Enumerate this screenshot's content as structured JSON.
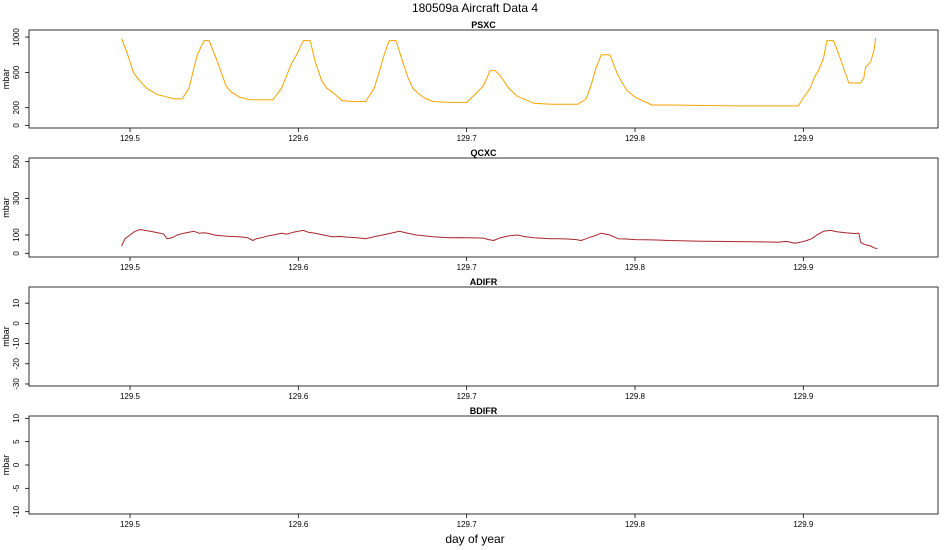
{
  "title": "180509a   Aircraft Data 4",
  "xlabel": "day of year",
  "chart_data": [
    {
      "type": "line",
      "title": "PSXC",
      "ylabel": "mbar",
      "xlim": [
        129.44,
        129.98
      ],
      "ylim": [
        -30,
        1080
      ],
      "xticks": [
        129.5,
        129.6,
        129.7,
        129.8,
        129.9
      ],
      "yticks": [
        0,
        200,
        600,
        1000
      ],
      "series": [
        {
          "color": "#f5a300",
          "x": [
            129.495,
            129.498,
            129.502,
            129.505,
            129.51,
            129.516,
            129.52,
            129.526,
            129.531,
            129.535,
            129.538,
            129.54,
            129.544,
            129.547,
            129.552,
            129.557,
            129.56,
            129.565,
            129.571,
            129.574,
            129.58,
            129.585,
            129.59,
            129.593,
            129.596,
            129.599,
            129.603,
            129.607,
            129.61,
            129.614,
            129.617,
            129.62,
            129.626,
            129.632,
            129.636,
            129.64,
            129.645,
            129.648,
            129.651,
            129.654,
            129.658,
            129.662,
            129.665,
            129.668,
            129.672,
            129.676,
            129.68,
            129.69,
            129.7,
            129.705,
            129.71,
            129.714,
            129.717,
            129.72,
            129.725,
            129.73,
            129.74,
            129.75,
            129.76,
            129.766,
            129.771,
            129.774,
            129.777,
            129.78,
            129.785,
            129.79,
            129.795,
            129.8,
            129.81,
            129.82,
            129.822,
            129.84,
            129.86,
            129.87,
            129.882,
            129.887,
            129.892,
            129.897,
            129.9,
            129.904,
            129.907,
            129.909,
            129.912,
            129.914,
            129.918,
            129.923,
            129.927,
            129.933,
            129.934,
            129.934,
            129.936,
            129.937,
            129.94,
            129.942,
            129.943
          ],
          "y": [
            980,
            840,
            600,
            520,
            420,
            350,
            330,
            300,
            300,
            420,
            650,
            800,
            960,
            960,
            720,
            450,
            380,
            320,
            290,
            290,
            290,
            290,
            420,
            560,
            700,
            800,
            960,
            960,
            720,
            500,
            420,
            380,
            280,
            270,
            270,
            270,
            420,
            600,
            800,
            960,
            960,
            720,
            550,
            420,
            350,
            300,
            270,
            260,
            260,
            350,
            450,
            620,
            620,
            560,
            420,
            330,
            250,
            240,
            240,
            240,
            300,
            460,
            660,
            800,
            800,
            560,
            400,
            320,
            230,
            230,
            230,
            225,
            220,
            220,
            220,
            220,
            220,
            220,
            310,
            420,
            560,
            620,
            760,
            960,
            960,
            700,
            480,
            480,
            480,
            480,
            540,
            660,
            720,
            850,
            990
          ]
        }
      ]
    },
    {
      "type": "line",
      "title": "QCXC",
      "ylabel": "mbar",
      "xlim": [
        129.44,
        129.98
      ],
      "ylim": [
        -20,
        520
      ],
      "xticks": [
        129.5,
        129.6,
        129.7,
        129.8,
        129.9
      ],
      "yticks": [
        0,
        100,
        300,
        500
      ],
      "series": [
        {
          "color": "#a8262b",
          "x": [
            129.495,
            129.497,
            129.5,
            129.503,
            129.506,
            129.509,
            129.512,
            129.515,
            129.518,
            129.52,
            129.522,
            129.525,
            129.528,
            129.532,
            129.535,
            129.538,
            129.541,
            129.544,
            129.547,
            129.55,
            129.555,
            129.56,
            129.565,
            129.57,
            129.573,
            129.575,
            129.578,
            129.582,
            129.585,
            129.59,
            129.593,
            129.597,
            129.6,
            129.603,
            129.606,
            129.61,
            129.615,
            129.62,
            129.625,
            129.63,
            129.635,
            129.64,
            129.645,
            129.65,
            129.655,
            129.66,
            129.665,
            129.67,
            129.675,
            129.68,
            129.685,
            129.69,
            129.695,
            129.7,
            129.705,
            129.71,
            129.713,
            129.716,
            129.72,
            129.725,
            129.73,
            129.735,
            129.74,
            129.745,
            129.75,
            129.755,
            129.76,
            129.765,
            129.768,
            129.771,
            129.774,
            129.776,
            129.78,
            129.785,
            129.79,
            129.795,
            129.8,
            129.805,
            129.81,
            129.815,
            129.82,
            129.83,
            129.84,
            129.85,
            129.86,
            129.87,
            129.88,
            129.885,
            129.89,
            129.895,
            129.898,
            129.902,
            129.905,
            129.908,
            129.912,
            129.916,
            129.92,
            129.925,
            129.93,
            129.933,
            129.934,
            129.936,
            129.938,
            129.94,
            129.942,
            129.944
          ],
          "y": [
            40,
            80,
            100,
            120,
            130,
            125,
            120,
            115,
            110,
            105,
            80,
            85,
            100,
            110,
            115,
            120,
            110,
            112,
            108,
            100,
            95,
            92,
            90,
            85,
            70,
            80,
            85,
            95,
            100,
            110,
            105,
            115,
            120,
            125,
            115,
            110,
            100,
            90,
            92,
            88,
            85,
            80,
            90,
            100,
            110,
            120,
            110,
            100,
            95,
            90,
            88,
            85,
            86,
            85,
            84,
            83,
            75,
            70,
            85,
            95,
            100,
            90,
            85,
            82,
            80,
            80,
            78,
            75,
            70,
            80,
            90,
            95,
            110,
            100,
            80,
            78,
            75,
            74,
            73,
            72,
            70,
            68,
            66,
            65,
            64,
            63,
            62,
            60,
            65,
            55,
            60,
            70,
            80,
            100,
            120,
            125,
            118,
            112,
            108,
            110,
            60,
            50,
            45,
            40,
            30,
            25
          ]
        }
      ]
    },
    {
      "type": "line",
      "title": "ADIFR",
      "ylabel": "mbar",
      "xlim": [
        129.44,
        129.98
      ],
      "ylim": [
        -31,
        18
      ],
      "xticks": [
        129.5,
        129.6,
        129.7,
        129.8,
        129.9
      ],
      "yticks": [
        -30,
        -20,
        -10,
        0,
        10
      ],
      "series": []
    },
    {
      "type": "line",
      "title": "BDIFR",
      "ylabel": "mbar",
      "xlim": [
        129.44,
        129.98
      ],
      "ylim": [
        -10.5,
        10.5
      ],
      "xticks": [
        129.5,
        129.6,
        129.7,
        129.8,
        129.9
      ],
      "yticks": [
        -10,
        -5,
        0,
        5,
        10
      ],
      "series": []
    }
  ]
}
